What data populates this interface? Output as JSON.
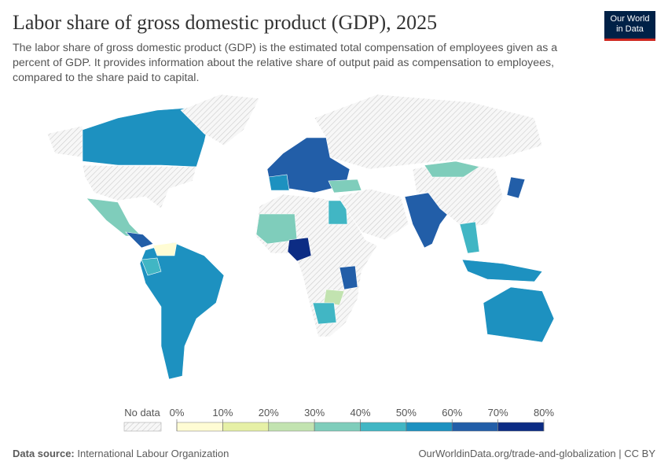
{
  "header": {
    "title": "Labor share of gross domestic product (GDP), 2025",
    "subtitle": "The labor share of gross domestic product (GDP) is the estimated total compensation of employees given as a percent of GDP. It provides information about the relative share of output paid as compensation to employees, compared to the share paid to capital.",
    "logo": [
      "Our World",
      "in Data"
    ]
  },
  "legend": {
    "no_data": "No data",
    "ticks": [
      {
        "value": 0,
        "label": "0%"
      },
      {
        "value": 10,
        "label": "10%"
      },
      {
        "value": 20,
        "label": "20%"
      },
      {
        "value": 30,
        "label": "30%"
      },
      {
        "value": 40,
        "label": "40%"
      },
      {
        "value": 50,
        "label": "50%"
      },
      {
        "value": 60,
        "label": "60%"
      },
      {
        "value": 70,
        "label": "70%"
      },
      {
        "value": 80,
        "label": "80%"
      }
    ],
    "colors": [
      "#fffcd4",
      "#e6f0a6",
      "#c2e3b0",
      "#7fcdbb",
      "#41b6c4",
      "#1d91c0",
      "#225ea8",
      "#0c2c84"
    ]
  },
  "footer": {
    "source_label": "Data source:",
    "source": "International Labour Organization",
    "url": "OurWorldinData.org/trade-and-globalization | CC BY"
  }
}
